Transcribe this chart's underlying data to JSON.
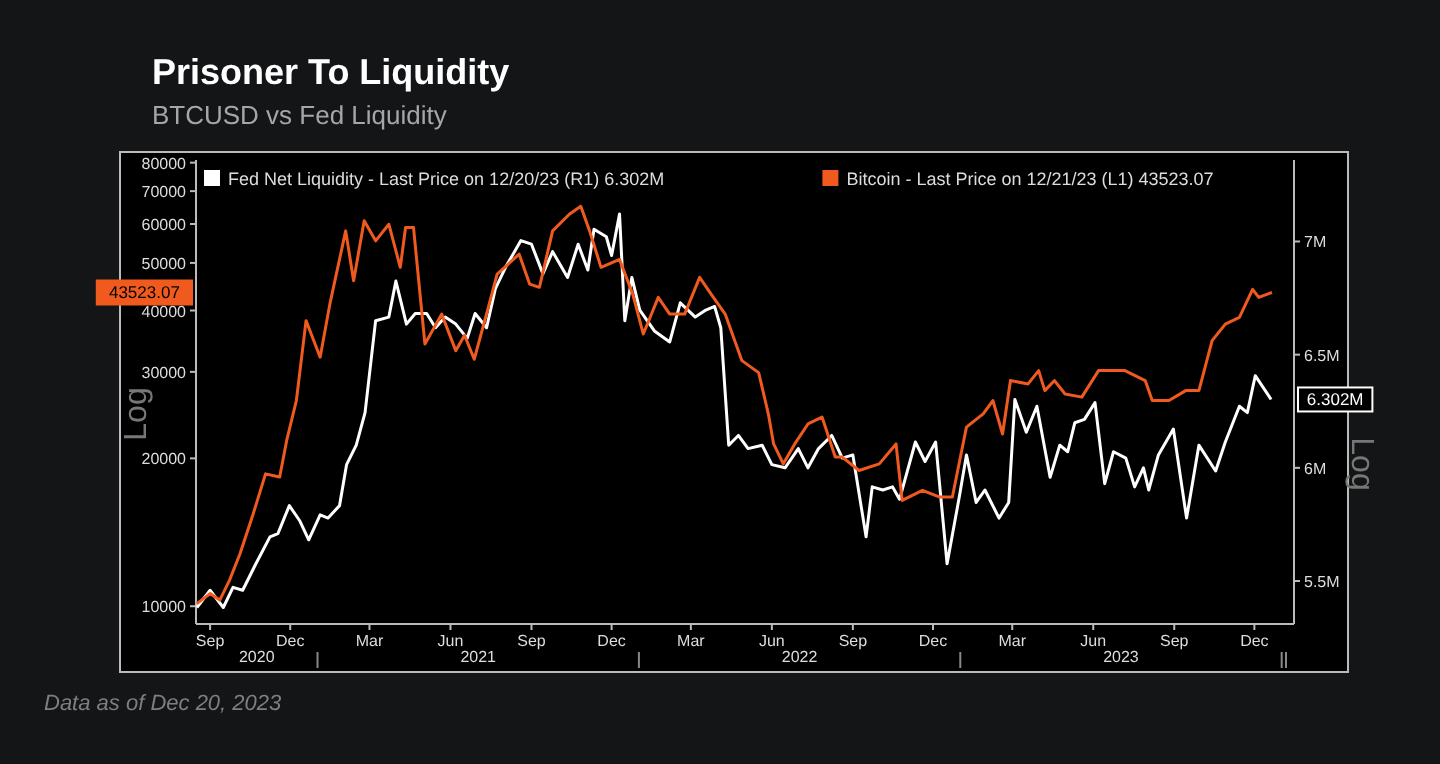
{
  "chart_data": {
    "type": "line",
    "title": "Prisoner To Liquidity",
    "subtitle": "BTCUSD vs Fed Liquidity",
    "ylabel": "Log",
    "y2label": "Log",
    "log": true,
    "legend": "top left",
    "marker": "none",
    "line_style": "solid",
    "grid": false,
    "xlim": [
      "2020-08-16",
      "2024-01-15"
    ],
    "xticks": [
      {
        "value": "2020-09-01",
        "label": "Sep"
      },
      {
        "value": "2020-12-01",
        "label": "Dec"
      },
      {
        "value": "2021-03-01",
        "label": "Mar"
      },
      {
        "value": "2021-06-01",
        "label": "Jun"
      },
      {
        "value": "2021-09-01",
        "label": "Sep"
      },
      {
        "value": "2021-12-01",
        "label": "Dec"
      },
      {
        "value": "2022-03-01",
        "label": "Mar"
      },
      {
        "value": "2022-06-01",
        "label": "Jun"
      },
      {
        "value": "2022-09-01",
        "label": "Sep"
      },
      {
        "value": "2022-12-01",
        "label": "Dec"
      },
      {
        "value": "2023-03-01",
        "label": "Mar"
      },
      {
        "value": "2023-06-01",
        "label": "Jun"
      },
      {
        "value": "2023-09-01",
        "label": "Sep"
      },
      {
        "value": "2023-12-01",
        "label": "Dec"
      }
    ],
    "ylim": [
      9200,
      81000
    ],
    "yticks": [
      10000,
      20000,
      30000,
      40000,
      50000,
      60000,
      70000,
      80000
    ],
    "y2lim": [
      5310000,
      7360000
    ],
    "y2ticks": [
      {
        "value": 5500000,
        "label": "5.5M"
      },
      {
        "value": 6000000,
        "label": "6M"
      },
      {
        "value": 6500000,
        "label": "6.5M"
      },
      {
        "value": 7000000,
        "label": "7M"
      }
    ],
    "series": [
      {
        "name": "Fed Net Liquidity - Last Price on 12/20/23 (R1) 6.302M",
        "color": "#ffffff",
        "axis": "y2",
        "x": [
          "2020-08-17",
          "2020-09-01",
          "2020-09-16",
          "2020-09-27",
          "2020-10-08",
          "2020-10-23",
          "2020-11-08",
          "2020-11-17",
          "2020-11-30",
          "2020-12-12",
          "2020-12-22",
          "2021-01-04",
          "2021-01-13",
          "2021-01-26",
          "2021-02-03",
          "2021-02-14",
          "2021-02-24",
          "2021-03-08",
          "2021-03-23",
          "2021-03-31",
          "2021-04-12",
          "2021-04-22",
          "2021-05-05",
          "2021-05-15",
          "2021-05-26",
          "2021-06-07",
          "2021-06-20",
          "2021-06-29",
          "2021-07-12",
          "2021-07-22",
          "2021-08-03",
          "2021-08-20",
          "2021-09-01",
          "2021-09-14",
          "2021-09-25",
          "2021-10-12",
          "2021-10-24",
          "2021-11-04",
          "2021-11-11",
          "2021-11-25",
          "2021-12-01",
          "2021-12-10",
          "2021-12-16",
          "2021-12-24",
          "2022-01-02",
          "2022-01-19",
          "2022-02-05",
          "2022-02-17",
          "2022-03-06",
          "2022-03-18",
          "2022-03-28",
          "2022-04-04",
          "2022-04-13",
          "2022-04-24",
          "2022-05-05",
          "2022-05-21",
          "2022-06-01",
          "2022-06-16",
          "2022-07-01",
          "2022-07-12",
          "2022-07-24",
          "2022-08-08",
          "2022-08-20",
          "2022-09-01",
          "2022-09-16",
          "2022-09-23",
          "2022-10-05",
          "2022-10-16",
          "2022-10-24",
          "2022-11-11",
          "2022-11-22",
          "2022-12-04",
          "2022-12-17",
          "2022-12-31",
          "2023-01-08",
          "2023-01-19",
          "2023-01-29",
          "2023-02-14",
          "2023-02-25",
          "2023-03-04",
          "2023-03-17",
          "2023-03-29",
          "2023-04-13",
          "2023-04-24",
          "2023-05-03",
          "2023-05-11",
          "2023-05-22",
          "2023-06-03",
          "2023-06-14",
          "2023-06-24",
          "2023-07-08",
          "2023-07-18",
          "2023-07-28",
          "2023-08-03",
          "2023-08-14",
          "2023-08-31",
          "2023-09-15",
          "2023-09-29",
          "2023-10-18",
          "2023-10-29",
          "2023-11-14",
          "2023-11-23",
          "2023-12-02",
          "2023-12-20"
        ],
        "values": [
          5383000,
          5459000,
          5383000,
          5472000,
          5459000,
          5576000,
          5695000,
          5709000,
          5833000,
          5765000,
          5682000,
          5792000,
          5778000,
          5833000,
          6014000,
          6100000,
          6244000,
          6650000,
          6666000,
          6825000,
          6635000,
          6682000,
          6682000,
          6619000,
          6666000,
          6635000,
          6572000,
          6682000,
          6619000,
          6792000,
          6889000,
          7004000,
          6988000,
          6857000,
          6955000,
          6841000,
          6988000,
          6874000,
          7054000,
          7021000,
          6938000,
          7121000,
          6650000,
          6841000,
          6697000,
          6603000,
          6556000,
          6729000,
          6666000,
          6697000,
          6713000,
          6619000,
          6100000,
          6143000,
          6085000,
          6100000,
          6014000,
          6000000,
          6085000,
          6000000,
          6085000,
          6143000,
          6043000,
          6057000,
          5695000,
          5916000,
          5902000,
          5916000,
          5861000,
          6114000,
          6028000,
          6114000,
          5576000,
          5874000,
          6057000,
          5847000,
          5902000,
          5778000,
          5847000,
          6302000,
          6157000,
          6272000,
          5958000,
          6100000,
          6071000,
          6199000,
          6214000,
          6288000,
          5930000,
          6071000,
          6043000,
          5916000,
          6000000,
          5902000,
          6057000,
          6171000,
          5778000,
          6100000,
          5986000,
          6114000,
          6272000,
          6244000,
          6407000,
          6302000
        ]
      },
      {
        "name": "Bitcoin - Last Price on 12/21/23 (L1) 43523.07",
        "color": "#f05a1e",
        "axis": "y",
        "x": [
          "2020-08-17",
          "2020-09-01",
          "2020-09-12",
          "2020-09-23",
          "2020-10-05",
          "2020-10-20",
          "2020-11-03",
          "2020-11-19",
          "2020-11-27",
          "2020-12-08",
          "2020-12-19",
          "2021-01-04",
          "2021-01-15",
          "2021-02-02",
          "2021-02-11",
          "2021-02-23",
          "2021-03-08",
          "2021-03-23",
          "2021-04-05",
          "2021-04-11",
          "2021-04-20",
          "2021-05-03",
          "2021-05-22",
          "2021-06-07",
          "2021-06-17",
          "2021-06-28",
          "2021-07-14",
          "2021-07-24",
          "2021-08-18",
          "2021-08-30",
          "2021-09-10",
          "2021-09-25",
          "2021-10-14",
          "2021-10-27",
          "2021-11-06",
          "2021-11-19",
          "2021-12-10",
          "2021-12-25",
          "2022-01-06",
          "2022-01-23",
          "2022-02-05",
          "2022-02-22",
          "2022-03-11",
          "2022-03-24",
          "2022-04-09",
          "2022-04-28",
          "2022-05-17",
          "2022-05-28",
          "2022-06-03",
          "2022-06-14",
          "2022-06-27",
          "2022-07-12",
          "2022-07-28",
          "2022-08-12",
          "2022-08-20",
          "2022-09-08",
          "2022-10-01",
          "2022-10-20",
          "2022-10-27",
          "2022-11-19",
          "2022-12-08",
          "2022-12-23",
          "2023-01-08",
          "2023-01-27",
          "2023-02-07",
          "2023-02-18",
          "2023-02-27",
          "2023-03-19",
          "2023-03-31",
          "2023-04-07",
          "2023-04-18",
          "2023-04-30",
          "2023-05-19",
          "2023-06-07",
          "2023-07-07",
          "2023-07-30",
          "2023-08-07",
          "2023-08-26",
          "2023-09-14",
          "2023-09-29",
          "2023-10-14",
          "2023-10-29",
          "2023-11-14",
          "2023-11-29",
          "2023-12-06",
          "2023-12-21"
        ],
        "values": [
          10120,
          10610,
          10290,
          11290,
          12790,
          15430,
          18600,
          18320,
          21750,
          26230,
          38140,
          32140,
          41210,
          58100,
          45980,
          60910,
          55450,
          59940,
          48960,
          59040,
          59040,
          34180,
          39330,
          33140,
          35610,
          31830,
          40600,
          47430,
          52080,
          45260,
          44590,
          58100,
          62810,
          65200,
          58100,
          48960,
          50820,
          43190,
          35820,
          42550,
          39330,
          39330,
          46720,
          43190,
          39330,
          31620,
          29890,
          24640,
          21400,
          19490,
          21400,
          23500,
          24270,
          20120,
          20120,
          18890,
          19490,
          21400,
          16420,
          17210,
          16690,
          16690,
          23150,
          24640,
          26230,
          22420,
          28800,
          28350,
          30180,
          27480,
          28800,
          27050,
          26650,
          30180,
          30180,
          28800,
          26230,
          26230,
          27480,
          27480,
          34730,
          37530,
          38750,
          44170,
          42550,
          43523.07
        ]
      }
    ],
    "annotations": [
      "43523.07",
      "6.302M",
      "2020",
      "2021",
      "2022",
      "2023",
      "Data as of Dec 20, 2023"
    ]
  }
}
